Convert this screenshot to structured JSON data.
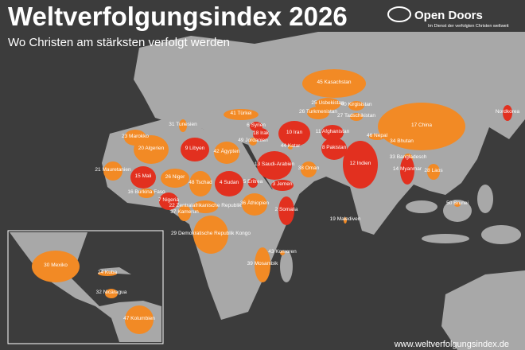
{
  "header": {
    "title": "Weltverfolgungsindex 2026",
    "subtitle": "Wo Christen am stärksten verfolgt werden"
  },
  "logo": {
    "name": "Open Doors",
    "tagline": "Im Dienst der verfolgten Christen weltweit"
  },
  "footer": {
    "url": "www.weltverfolgungsindex.de"
  },
  "colors": {
    "extreme": "#e2301f",
    "high": "#f28a25"
  },
  "countries": [
    {
      "rank": 45,
      "name": "Kasachstan",
      "level": "high"
    },
    {
      "rank": 25,
      "name": "Usbekistan",
      "level": "high"
    },
    {
      "rank": 40,
      "name": "Kirgisistan",
      "level": "high"
    },
    {
      "rank": 26,
      "name": "Turkmenistan",
      "level": "high"
    },
    {
      "rank": 27,
      "name": "Tadschikistan",
      "level": "high"
    },
    {
      "rank": 41,
      "name": "Türkei",
      "level": "high"
    },
    {
      "rank": 6,
      "name": "Syrien",
      "level": "extreme"
    },
    {
      "rank": 18,
      "name": "Irak",
      "level": "extreme"
    },
    {
      "rank": 49,
      "name": "Jordanien",
      "level": "high"
    },
    {
      "rank": 10,
      "name": "Iran",
      "level": "extreme"
    },
    {
      "rank": 11,
      "name": "Afghanistan",
      "level": "extreme"
    },
    {
      "rank": 17,
      "name": "China",
      "level": "high"
    },
    {
      "name": "Nordkorea",
      "level": "extreme"
    },
    {
      "rank": 31,
      "name": "Tunesien",
      "level": "high"
    },
    {
      "rank": 23,
      "name": "Marokko",
      "level": "high"
    },
    {
      "rank": 20,
      "name": "Algerien",
      "level": "high"
    },
    {
      "rank": 9,
      "name": "Libyen",
      "level": "extreme"
    },
    {
      "rank": 42,
      "name": "Ägypten",
      "level": "high"
    },
    {
      "rank": 44,
      "name": "Katar",
      "level": "high"
    },
    {
      "rank": 8,
      "name": "Pakistan",
      "level": "extreme"
    },
    {
      "rank": 46,
      "name": "Nepal",
      "level": "high"
    },
    {
      "rank": 34,
      "name": "Bhutan",
      "level": "high"
    },
    {
      "rank": 13,
      "name": "Saudi-Arabien",
      "level": "extreme"
    },
    {
      "rank": 38,
      "name": "Oman",
      "level": "high"
    },
    {
      "rank": 12,
      "name": "Indien",
      "level": "extreme"
    },
    {
      "rank": 33,
      "name": "Bangladesch",
      "level": "high"
    },
    {
      "rank": 14,
      "name": "Myanmar",
      "level": "extreme"
    },
    {
      "rank": 28,
      "name": "Laos",
      "level": "high"
    },
    {
      "rank": 21,
      "name": "Mauretanien",
      "level": "high"
    },
    {
      "rank": 15,
      "name": "Mali",
      "level": "extreme"
    },
    {
      "rank": 26,
      "name": "Niger",
      "level": "high"
    },
    {
      "rank": 48,
      "name": "Tschad",
      "level": "high"
    },
    {
      "rank": 4,
      "name": "Sudan",
      "level": "extreme"
    },
    {
      "rank": 5,
      "name": "Eritrea",
      "level": "extreme"
    },
    {
      "rank": 3,
      "name": "Jemen",
      "level": "extreme"
    },
    {
      "rank": 16,
      "name": "Burkina Faso",
      "level": "high"
    },
    {
      "rank": 7,
      "name": "Nigeria",
      "level": "extreme"
    },
    {
      "rank": 22,
      "name": "Zentralafrikanische Republik",
      "level": "high"
    },
    {
      "rank": 37,
      "name": "Kamerun",
      "level": "high"
    },
    {
      "rank": 36,
      "name": "Äthiopien",
      "level": "high"
    },
    {
      "rank": 2,
      "name": "Somalia",
      "level": "extreme"
    },
    {
      "rank": 29,
      "name": "Demokratische Republik Kongo",
      "level": "high"
    },
    {
      "rank": 43,
      "name": "Komoren",
      "level": "high"
    },
    {
      "rank": 39,
      "name": "Mosambik",
      "level": "high"
    },
    {
      "rank": 19,
      "name": "Malediven",
      "level": "high"
    },
    {
      "rank": 50,
      "name": "Brunei",
      "level": "high"
    },
    {
      "rank": 30,
      "name": "Mexiko",
      "level": "high"
    },
    {
      "rank": 24,
      "name": "Kuba",
      "level": "high"
    },
    {
      "rank": 32,
      "name": "Nicaragua",
      "level": "high"
    },
    {
      "rank": 47,
      "name": "Kolumbien",
      "level": "high"
    }
  ]
}
